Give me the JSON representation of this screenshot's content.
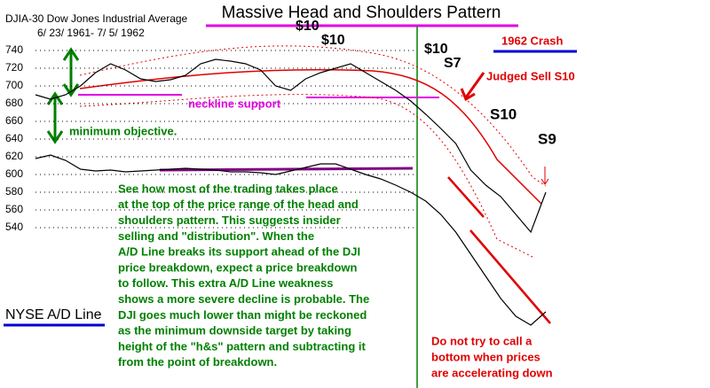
{
  "chart_data": {
    "type": "line",
    "title": "Massive Head and Shoulders Pattern",
    "subtitle": "DJIA-30  Dow Jones Industrial Average",
    "date_range": "6/ 23/ 1961- 7/ 5/ 1962",
    "categories": [
      null,
      null,
      null,
      null,
      null,
      null,
      null,
      null,
      null,
      null,
      null,
      null,
      null,
      null,
      null,
      null,
      null,
      null,
      null,
      null,
      null,
      null,
      null,
      null,
      null,
      null,
      null,
      null,
      null,
      null,
      null,
      null,
      null,
      null,
      null
    ],
    "series": [
      {
        "name": "DJIA",
        "color": "#000000",
        "values": [
          690,
          685,
          690,
          700,
          715,
          725,
          718,
          708,
          705,
          707,
          712,
          725,
          730,
          728,
          725,
          718,
          700,
          695,
          708,
          715,
          720,
          725,
          715,
          705,
          695,
          683,
          668,
          652,
          635,
          605,
          588,
          575,
          555,
          535,
          580
        ]
      },
      {
        "name": "NYSE A/D Line",
        "color": "#000000",
        "values": [
          618,
          622,
          616,
          606,
          604,
          605,
          603,
          604,
          605,
          606,
          607,
          606,
          605,
          603,
          603,
          602,
          600,
          604,
          608,
          612,
          612,
          606,
          600,
          595,
          588,
          580,
          570,
          555,
          535,
          510,
          485,
          460,
          440,
          430,
          445
        ]
      }
    ],
    "ylim": [
      359,
      797
    ],
    "yticks": [
      540,
      560,
      580,
      600,
      620,
      640,
      660,
      680,
      700,
      720,
      740
    ],
    "annotations": [
      "$10",
      "$10",
      "$10",
      "S7",
      "1962 Crash",
      "Judged Sell S10",
      "S10",
      "S9",
      "neckline support",
      "minimum objective.",
      "See how most of the trading takes place",
      "at the top of the price range of the head and",
      "shoulders pattern.  This suggests insider",
      "selling and \"distribution\".   When the",
      "A/D Line breaks its support ahead of the DJI",
      "price breakdown, expect a price breakdown",
      "to follow.  This extra A/D Line weakness",
      "shows a more severe decline is probable.  The",
      "DJI goes much lower than might be reckoned",
      "as the minimum downside target by taking",
      "height of the \"h&s\" pattern and subtracting it",
      "from the point of breakdown.",
      "Do not try to call a",
      "bottom when prices",
      "are accelerating down"
    ]
  }
}
